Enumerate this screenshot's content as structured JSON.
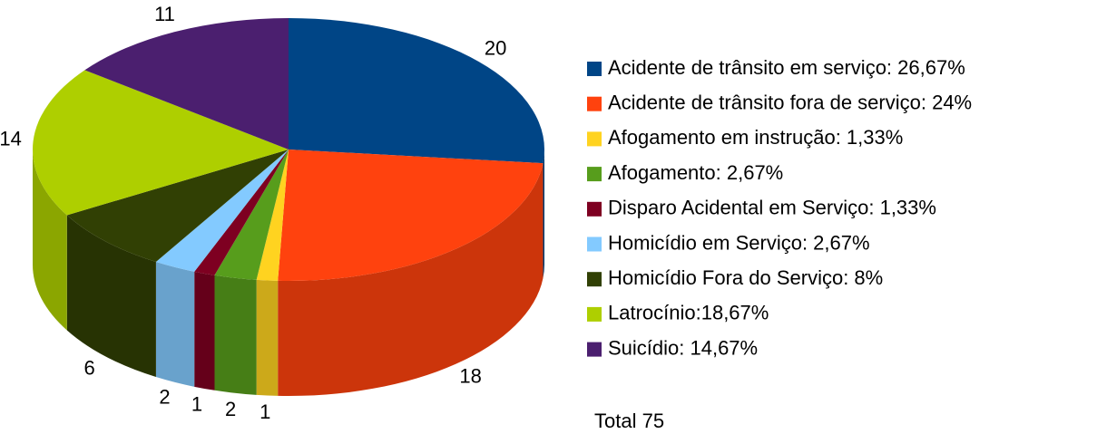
{
  "chart_data": {
    "type": "pie",
    "categories": [
      "Acidente de trânsito em serviço: 26,67%",
      "Acidente de trânsito fora de serviço: 24%",
      "Afogamento em instrução: 1,33%",
      "Afogamento: 2,67%",
      "Disparo Acidental em Serviço: 1,33%",
      "Homicídio em Serviço: 2,67%",
      "Homicídio Fora do Serviço: 8%",
      "Latrocínio:18,67%",
      "Suicídio: 14,67%"
    ],
    "values": [
      20,
      18,
      1,
      2,
      1,
      2,
      6,
      14,
      11
    ],
    "colors": [
      "#004586",
      "#ff420e",
      "#ffd320",
      "#579d1c",
      "#7e0021",
      "#83caff",
      "#314004",
      "#aecf00",
      "#4b1f6f"
    ],
    "annotation": "Total 75",
    "legend": "right"
  }
}
